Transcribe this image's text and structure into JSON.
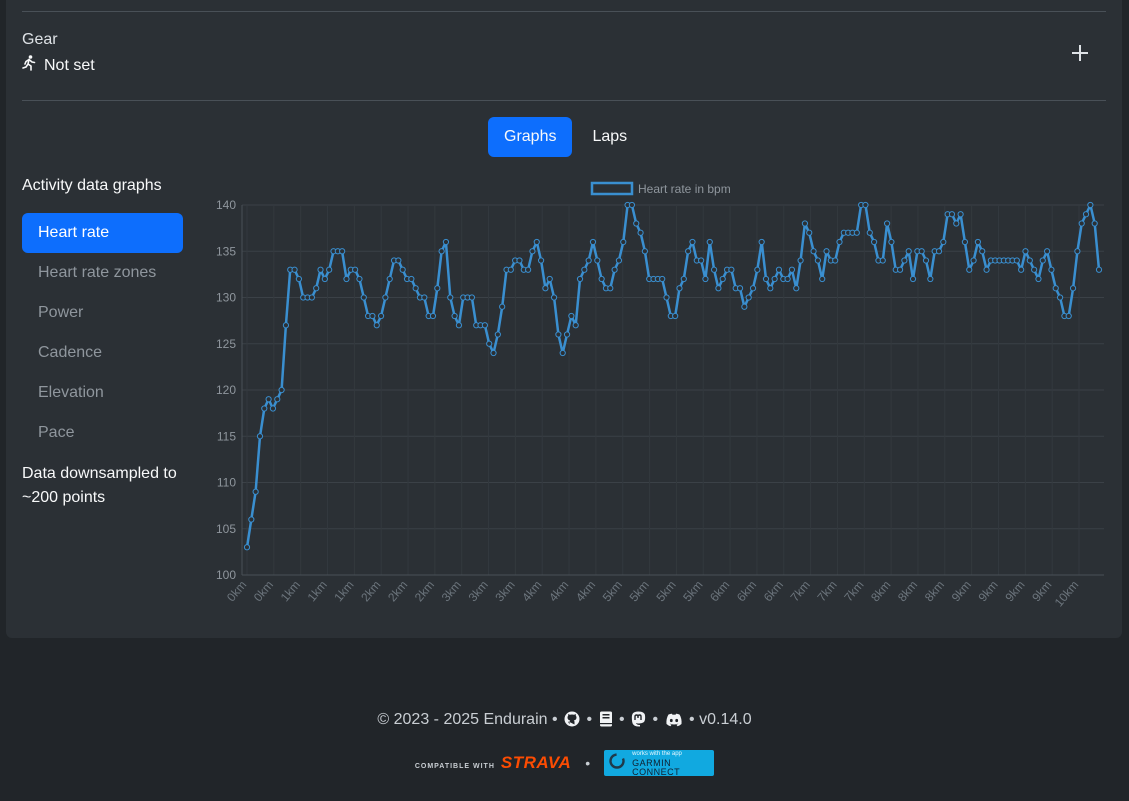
{
  "gear": {
    "label": "Gear",
    "value": "Not set",
    "icon": "running-person-icon",
    "add_icon": "plus-icon"
  },
  "tabs": [
    {
      "label": "Graphs",
      "active": true
    },
    {
      "label": "Laps",
      "active": false
    }
  ],
  "sidebar": {
    "title": "Activity data graphs",
    "items": [
      {
        "label": "Heart rate",
        "active": true
      },
      {
        "label": "Heart rate zones",
        "active": false
      },
      {
        "label": "Power",
        "active": false
      },
      {
        "label": "Cadence",
        "active": false
      },
      {
        "label": "Elevation",
        "active": false
      },
      {
        "label": "Pace",
        "active": false
      }
    ],
    "note": "Data downsampled to ~200 points"
  },
  "chart_data": {
    "type": "line",
    "title": "",
    "legend": {
      "label": "Heart rate in bpm",
      "placement": "top-center"
    },
    "ylabel": "",
    "xlabel": "",
    "ylim": [
      100,
      140
    ],
    "yticks": [
      100,
      105,
      110,
      115,
      120,
      125,
      130,
      135,
      140
    ],
    "grid": true,
    "color": "#3a8fd0",
    "x_tick_labels": [
      "0km",
      "0km",
      "1km",
      "1km",
      "1km",
      "2km",
      "2km",
      "2km",
      "3km",
      "3km",
      "3km",
      "4km",
      "4km",
      "4km",
      "5km",
      "5km",
      "5km",
      "5km",
      "6km",
      "6km",
      "6km",
      "7km",
      "7km",
      "7km",
      "8km",
      "8km",
      "8km",
      "9km",
      "9km",
      "9km",
      "9km",
      "10km"
    ],
    "series": [
      {
        "name": "Heart rate in bpm",
        "values": [
          103,
          106,
          109,
          115,
          118,
          119,
          118,
          119,
          120,
          127,
          133,
          133,
          132,
          130,
          130,
          130,
          131,
          133,
          132,
          133,
          135,
          135,
          135,
          132,
          133,
          133,
          132,
          130,
          128,
          128,
          127,
          128,
          130,
          132,
          134,
          134,
          133,
          132,
          132,
          131,
          130,
          130,
          128,
          128,
          131,
          135,
          136,
          130,
          128,
          127,
          130,
          130,
          130,
          127,
          127,
          127,
          125,
          124,
          126,
          129,
          133,
          133,
          134,
          134,
          133,
          133,
          135,
          136,
          134,
          131,
          132,
          130,
          126,
          124,
          126,
          128,
          127,
          132,
          133,
          134,
          136,
          134,
          132,
          131,
          131,
          133,
          134,
          136,
          140,
          140,
          138,
          137,
          135,
          132,
          132,
          132,
          132,
          130,
          128,
          128,
          131,
          132,
          135,
          136,
          134,
          134,
          132,
          136,
          133,
          131,
          132,
          133,
          133,
          131,
          131,
          129,
          130,
          131,
          133,
          136,
          132,
          131,
          132,
          133,
          132,
          132,
          133,
          131,
          134,
          138,
          137,
          135,
          134,
          132,
          135,
          134,
          134,
          136,
          137,
          137,
          137,
          137,
          140,
          140,
          137,
          136,
          134,
          134,
          138,
          136,
          133,
          133,
          134,
          135,
          132,
          135,
          135,
          134,
          132,
          135,
          135,
          136,
          139,
          139,
          138,
          139,
          136,
          133,
          134,
          136,
          135,
          133,
          134,
          134,
          134,
          134,
          134,
          134,
          134,
          133,
          135,
          134,
          133,
          132,
          134,
          135,
          133,
          131,
          130,
          128,
          128,
          131,
          135,
          138,
          139,
          140,
          138,
          133
        ]
      }
    ]
  },
  "footer": {
    "copyright": "© 2023 - 2025 Endurain",
    "separator": "•",
    "icons": [
      "github-icon",
      "book-icon",
      "mastodon-icon",
      "discord-icon"
    ],
    "version": "v0.14.0",
    "strava_compat": "COMPATIBLE WITH",
    "strava_brand": "STRAVA",
    "garmin_small": "works with the app",
    "garmin_big": "GARMIN CONNECT"
  },
  "colors": {
    "accent": "#0d6efd",
    "background": "#212529",
    "card": "#2b3035",
    "strava": "#fc4c02",
    "garmin": "#11a9e0"
  }
}
